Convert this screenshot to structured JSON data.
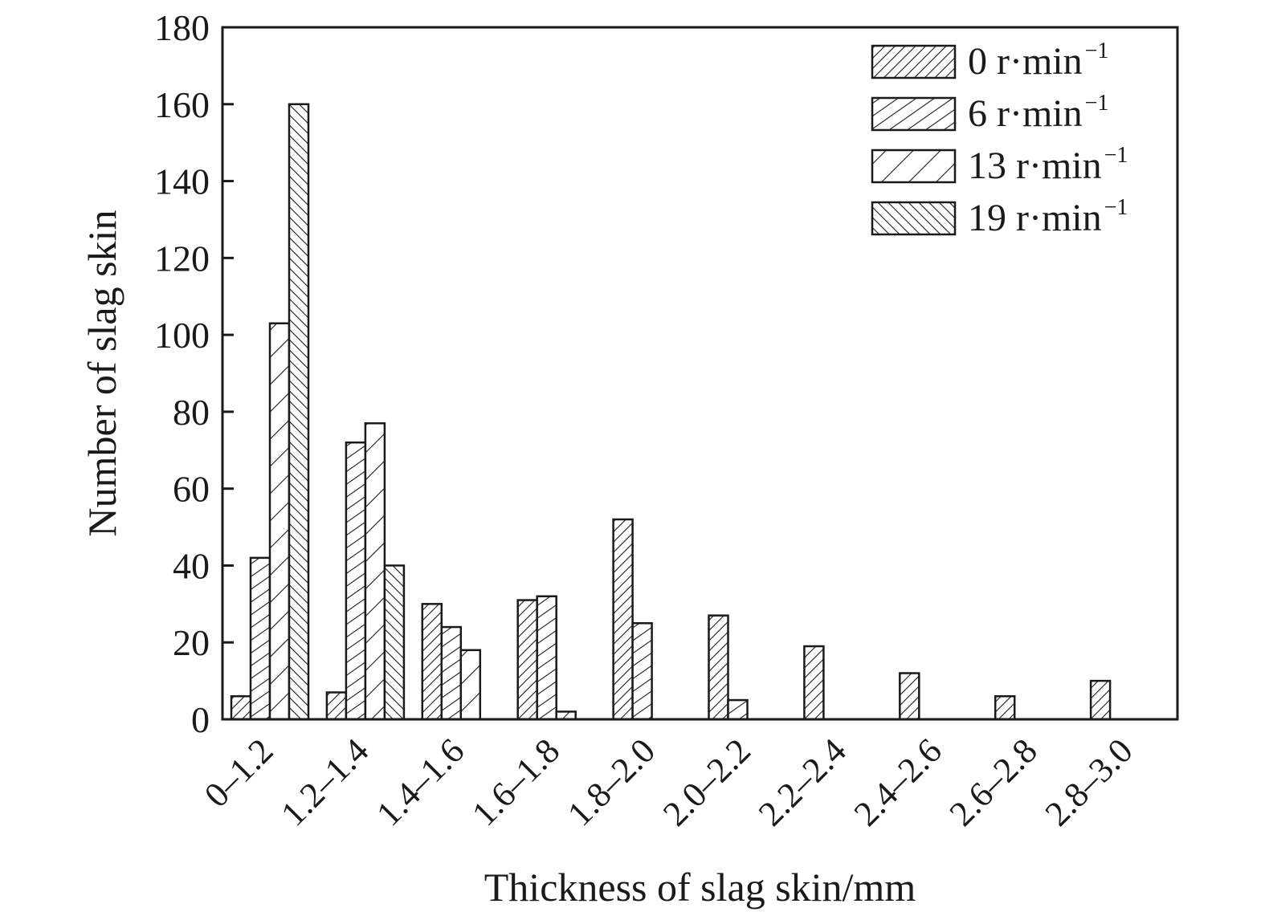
{
  "chart_data": {
    "type": "bar",
    "title": "",
    "xlabel": "Thickness of slag skin/mm",
    "ylabel": "Number of slag skin",
    "ylim": [
      0,
      180
    ],
    "yticks": [
      "0",
      "20",
      "40",
      "60",
      "80",
      "100",
      "120",
      "140",
      "160",
      "180"
    ],
    "categories": [
      "0–1.2",
      "1.2–1.4",
      "1.4–1.6",
      "1.6–1.8",
      "1.8–2.0",
      "2.0–2.2",
      "2.2–2.4",
      "2.4–2.6",
      "2.6–2.8",
      "2.8–3.0"
    ],
    "series": [
      {
        "name": "0 r·min",
        "sup": "−1",
        "hatch": "dense-forward",
        "values": [
          6,
          7,
          30,
          31,
          52,
          27,
          19,
          12,
          6,
          10
        ]
      },
      {
        "name": "6 r·min",
        "sup": "−1",
        "hatch": "medium-forward",
        "values": [
          42,
          72,
          24,
          32,
          25,
          5,
          0,
          0,
          0,
          0
        ]
      },
      {
        "name": "13 r·min",
        "sup": "−1",
        "hatch": "sparse-forward",
        "values": [
          103,
          77,
          18,
          2,
          0,
          0,
          0,
          0,
          0,
          0
        ]
      },
      {
        "name": "19 r·min",
        "sup": "−1",
        "hatch": "dense-backward",
        "values": [
          160,
          40,
          0,
          0,
          0,
          0,
          0,
          0,
          0,
          0
        ]
      }
    ],
    "grid": false,
    "legend": "top-right"
  }
}
